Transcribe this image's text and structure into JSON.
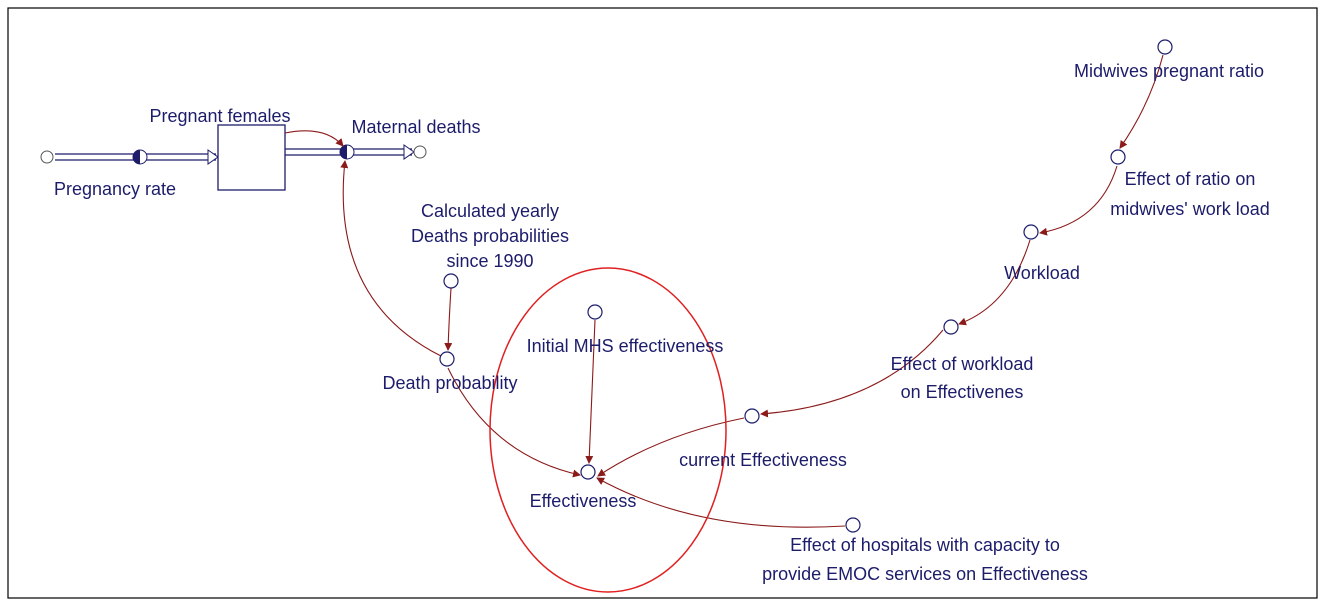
{
  "nodes": [
    {
      "lines": [
        "Pregnancy rate"
      ]
    },
    {
      "lines": [
        "Pregnant females"
      ]
    },
    {
      "lines": [
        "Maternal deaths"
      ]
    },
    {
      "lines": [
        "Calculated yearly",
        "Deaths probabilities",
        "since 1990"
      ]
    },
    {
      "lines": [
        "Death probability"
      ]
    },
    {
      "lines": [
        "Initial MHS effectiveness"
      ]
    },
    {
      "lines": [
        "Effectiveness"
      ]
    },
    {
      "lines": [
        "current Effectiveness"
      ]
    },
    {
      "lines": [
        "Effect of workload",
        "on Effectivenes"
      ]
    },
    {
      "lines": [
        "Workload"
      ]
    },
    {
      "lines": [
        "Effect of ratio on",
        "midwives' work load"
      ]
    },
    {
      "lines": [
        "Midwives pregnant ratio"
      ]
    },
    {
      "lines": [
        "Effect of hospitals with capacity to",
        "provide EMOC services on Effectiveness"
      ]
    }
  ]
}
